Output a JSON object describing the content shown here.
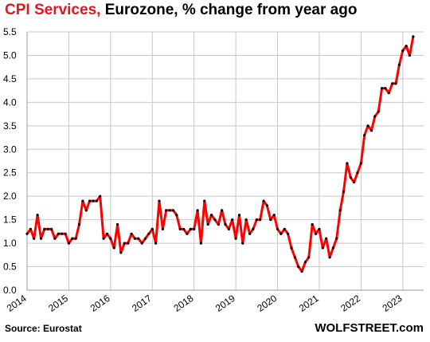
{
  "title": {
    "highlight": "CPI Services,",
    "rest": "Eurozone, % change from year ago"
  },
  "source": "Source: Eurostat",
  "brand": "WOLFSTREET.com",
  "colors": {
    "line": "#ff0000",
    "marker": "#000000",
    "grid": "#c8c8c8",
    "title_highlight": "#e8141c"
  },
  "chart_data": {
    "type": "line",
    "title": "CPI Services, Eurozone, % change from year ago",
    "ylim": [
      0,
      5.5
    ],
    "yticks": [
      "0.0",
      "0.5",
      "1.0",
      "1.5",
      "2.0",
      "2.5",
      "3.0",
      "3.5",
      "4.0",
      "4.5",
      "5.0",
      "5.5"
    ],
    "xlim": [
      2014.0,
      2023.5
    ],
    "xticks": [
      "2014",
      "2015",
      "2016",
      "2017",
      "2018",
      "2019",
      "2020",
      "2021",
      "2022",
      "2023"
    ],
    "grid": true,
    "series": [
      {
        "x_start": "2014-01",
        "frequency": "monthly",
        "values": [
          1.2,
          1.3,
          1.1,
          1.6,
          1.1,
          1.3,
          1.3,
          1.3,
          1.1,
          1.2,
          1.2,
          1.2,
          1.0,
          1.1,
          1.1,
          1.4,
          1.9,
          1.7,
          1.9,
          1.9,
          1.9,
          2.0,
          1.1,
          1.2,
          1.1,
          0.9,
          1.4,
          0.8,
          1.0,
          1.0,
          1.2,
          1.1,
          1.1,
          1.0,
          1.1,
          1.2,
          1.3,
          1.0,
          1.9,
          1.3,
          1.7,
          1.7,
          1.7,
          1.6,
          1.3,
          1.3,
          1.2,
          1.3,
          1.3,
          1.7,
          1.0,
          1.9,
          1.4,
          1.6,
          1.5,
          1.4,
          1.7,
          1.4,
          1.3,
          1.5,
          1.1,
          1.6,
          1.0,
          1.5,
          1.2,
          1.3,
          1.5,
          1.5,
          1.9,
          1.8,
          1.5,
          1.6,
          1.3,
          1.2,
          1.3,
          1.2,
          0.9,
          0.7,
          0.5,
          0.4,
          0.6,
          0.7,
          1.4,
          1.2,
          1.3,
          0.9,
          1.1,
          0.7,
          0.9,
          1.1,
          1.7,
          2.1,
          2.7,
          2.4,
          2.3,
          2.5,
          2.7,
          3.3,
          3.5,
          3.4,
          3.7,
          3.8,
          4.3,
          4.3,
          4.2,
          4.4,
          4.4,
          4.8,
          5.1,
          5.2,
          5.0,
          5.4
        ]
      }
    ]
  }
}
